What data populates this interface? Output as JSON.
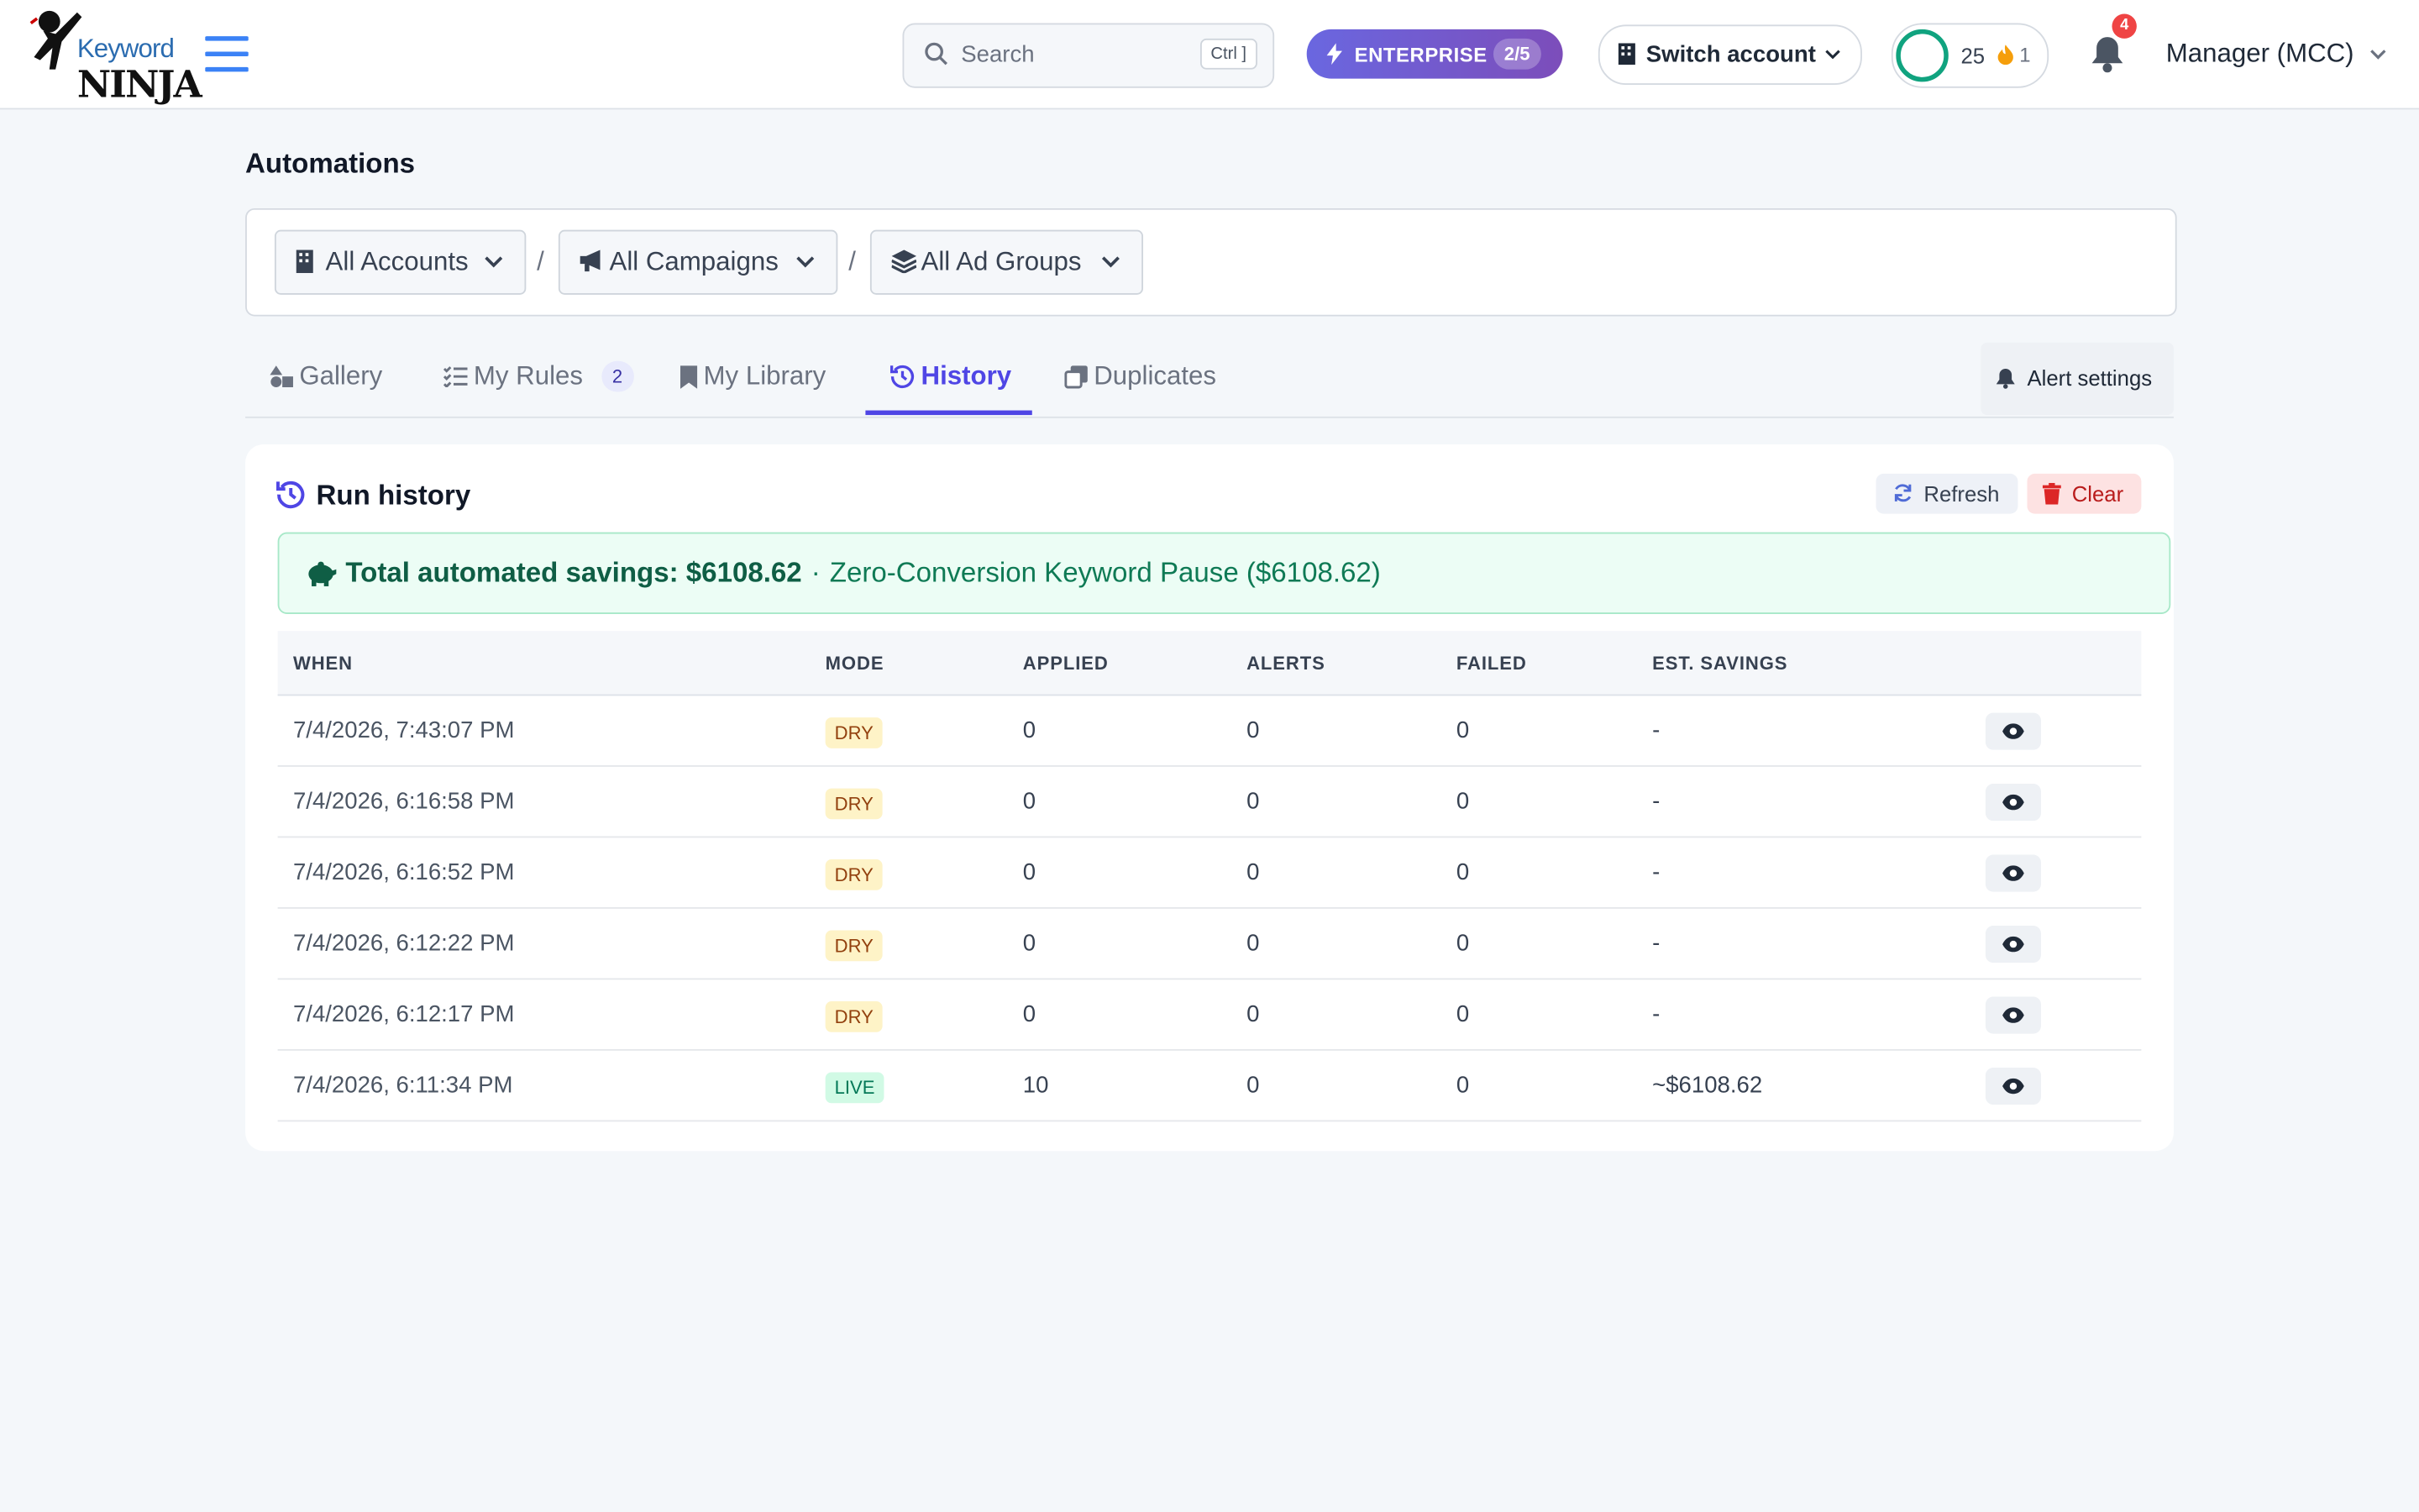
{
  "header": {
    "logo_top": "Keyword",
    "logo_bottom": "NINJA",
    "search_placeholder": "Search",
    "search_shortcut": "Ctrl ]",
    "plan": "ENTERPRISE",
    "plan_usage": "2/5",
    "switch_account": "Switch account",
    "credits": "25",
    "streak": "1",
    "notifications": "4",
    "user": "Manager (MCC)"
  },
  "page_title": "Automations",
  "filters": {
    "items": [
      "All Accounts",
      "All Campaigns",
      "All Ad Groups"
    ],
    "separator": "/"
  },
  "tabs": {
    "items": [
      {
        "label": "Gallery"
      },
      {
        "label": "My Rules",
        "badge": "2"
      },
      {
        "label": "My Library"
      },
      {
        "label": "History",
        "active": true
      },
      {
        "label": "Duplicates"
      }
    ],
    "alert_settings": "Alert settings"
  },
  "run_history": {
    "title": "Run history",
    "refresh": "Refresh",
    "clear": "Clear",
    "savings_total": "Total automated savings: $6108.62",
    "savings_separator": "·",
    "savings_detail": "Zero-Conversion Keyword Pause ($6108.62)",
    "table": {
      "columns": [
        "WHEN",
        "MODE",
        "APPLIED",
        "ALERTS",
        "FAILED",
        "EST. SAVINGS"
      ],
      "rows": [
        [
          "7/4/2026, 7:43:07 PM",
          "DRY",
          0,
          0,
          0,
          "-"
        ],
        [
          "7/4/2026, 6:16:58 PM",
          "DRY",
          0,
          0,
          0,
          "-"
        ],
        [
          "7/4/2026, 6:16:52 PM",
          "DRY",
          0,
          0,
          0,
          "-"
        ],
        [
          "7/4/2026, 6:12:22 PM",
          "DRY",
          0,
          0,
          0,
          "-"
        ],
        [
          "7/4/2026, 6:12:17 PM",
          "DRY",
          0,
          0,
          0,
          "-"
        ],
        [
          "7/4/2026, 6:11:34 PM",
          "LIVE",
          10,
          0,
          0,
          "~$6108.62"
        ]
      ]
    }
  }
}
